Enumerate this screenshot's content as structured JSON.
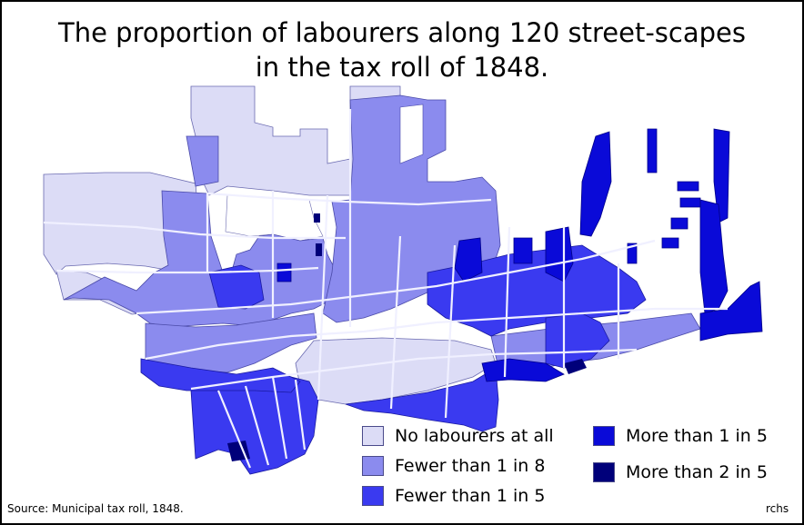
{
  "title_line1": "The proportion of labourers along 120 street-scapes",
  "title_line2": "in the tax roll of 1848.",
  "legend": [
    {
      "label": "No labourers at all",
      "color": "#dcdcf6"
    },
    {
      "label": "Fewer than 1 in 8",
      "color": "#8b8bee"
    },
    {
      "label": "Fewer than 1 in 5",
      "color": "#3a3af0"
    },
    {
      "label": "More than 1 in 5",
      "color": "#0a0ad8"
    },
    {
      "label": "More than 2 in 5",
      "color": "#00007a"
    }
  ],
  "source": "Source:  Municipal tax roll, 1848.",
  "credit": "rchs"
}
